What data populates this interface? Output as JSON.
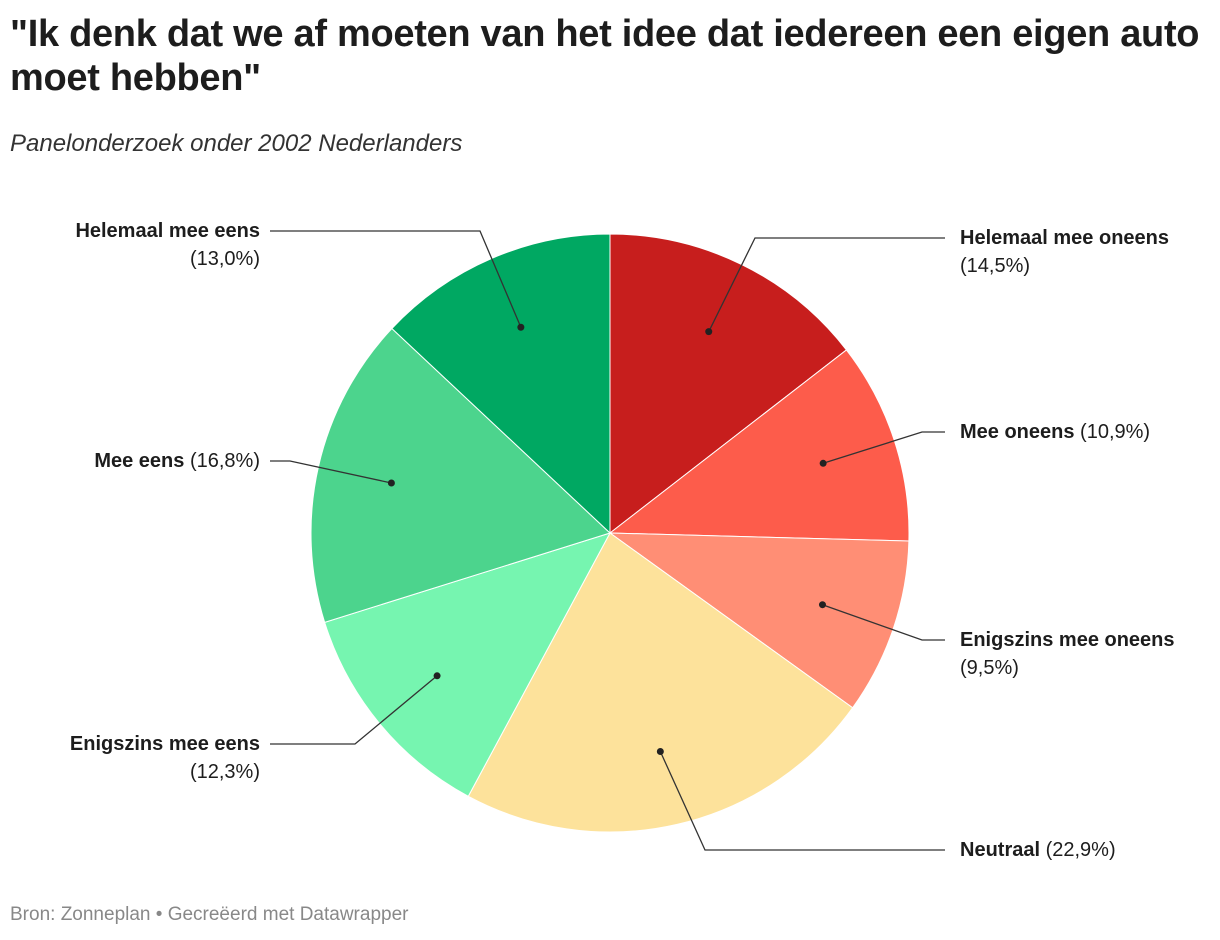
{
  "title": "\"Ik denk dat we af moeten van het idee dat iedereen een eigen auto moet hebben\"",
  "subtitle": "Panelonderzoek onder 2002 Nederlanders",
  "footer": "Bron: Zonneplan • Gecreëerd met Datawrapper",
  "chart_data": {
    "type": "pie",
    "direction": "clockwise from top",
    "slices": [
      {
        "label": "Helemaal mee oneens",
        "value": 14.5,
        "value_label": "(14,5%)",
        "color": "#c71e1d"
      },
      {
        "label": "Mee oneens",
        "value": 10.9,
        "value_label": "(10,9%)",
        "color": "#fd5c4b"
      },
      {
        "label": "Enigszins mee oneens",
        "value": 9.5,
        "value_label": "(9,5%)",
        "color": "#ff8e75"
      },
      {
        "label": "Neutraal",
        "value": 22.9,
        "value_label": "(22,9%)",
        "color": "#fde29b"
      },
      {
        "label": "Enigszins mee eens",
        "value": 12.3,
        "value_label": "(12,3%)",
        "color": "#76f5b0"
      },
      {
        "label": "Mee eens",
        "value": 16.8,
        "value_label": "(16,8%)",
        "color": "#4cd48d"
      },
      {
        "label": "Helemaal mee eens",
        "value": 13.0,
        "value_label": "(13,0%)",
        "color": "#00a862"
      }
    ]
  }
}
